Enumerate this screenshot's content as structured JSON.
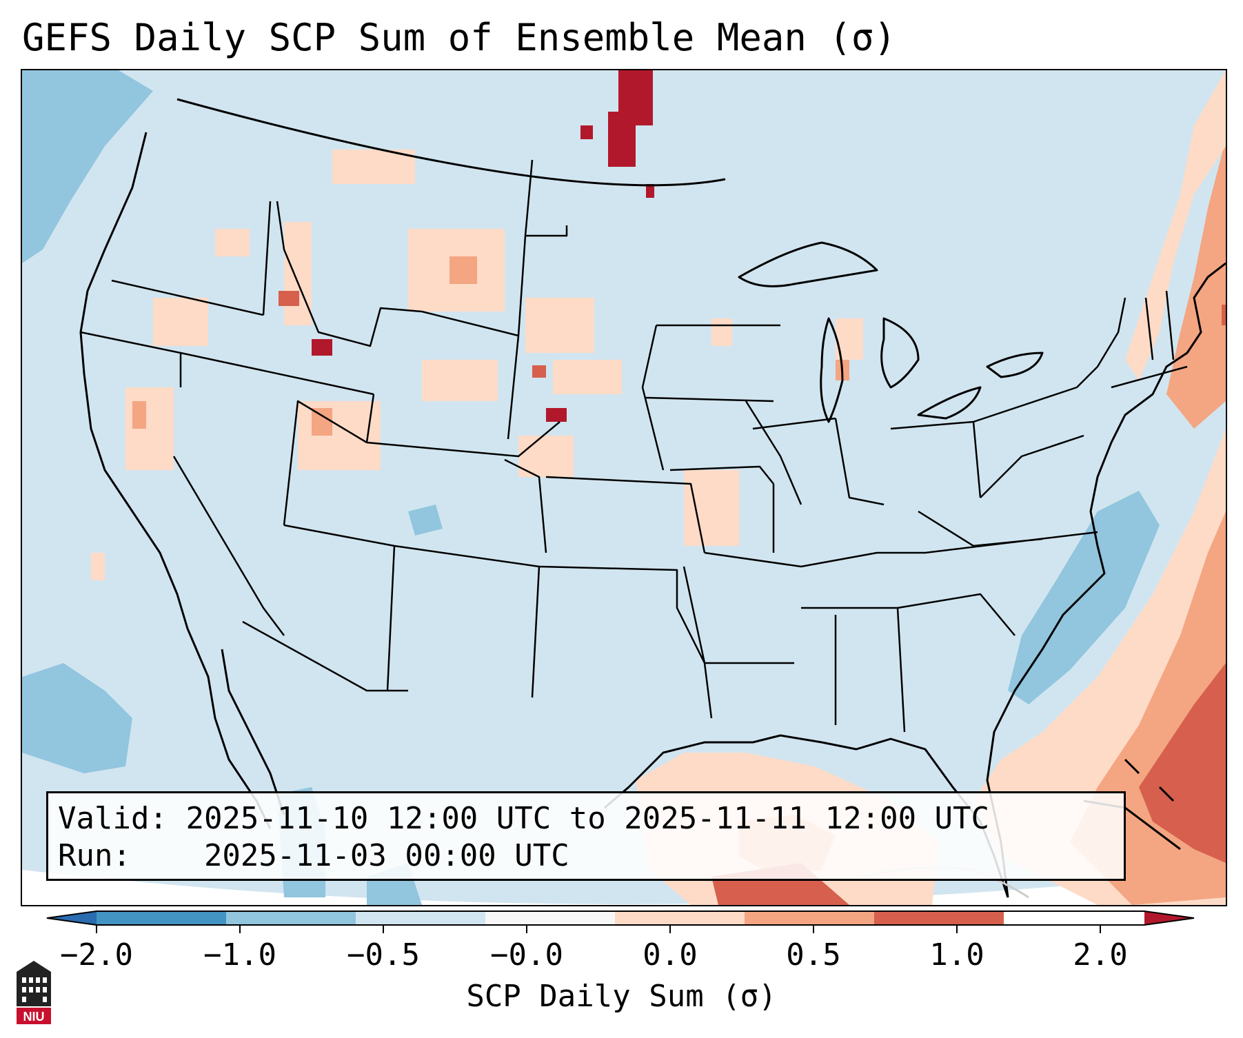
{
  "figure": {
    "title": "GEFS Daily SCP Sum of Ensemble Mean (σ)",
    "valid_label": "Valid:",
    "valid_text": "2025-11-10 12:00 UTC to 2025-11-11 12:00 UTC",
    "run_label": "Run:",
    "run_text": "2025-11-03 00:00 UTC"
  },
  "colorbar": {
    "label": "SCP Daily Sum (σ)",
    "ticks": [
      "−2.0",
      "−1.0",
      "−0.5",
      "−0.0",
      "0.0",
      "0.5",
      "1.0",
      "2.0"
    ],
    "bins": [
      {
        "from": "<-2.0",
        "color": "#2b6cb0"
      },
      {
        "from": "-2.0",
        "to": "-1.0",
        "color": "#4393c3"
      },
      {
        "from": "-1.0",
        "to": "-0.5",
        "color": "#92c5de"
      },
      {
        "from": "-0.5",
        "to": "-0.0",
        "color": "#d1e5f0"
      },
      {
        "from": "-0.0",
        "to": "0.0",
        "color": "#f7f7f7"
      },
      {
        "from": "0.0",
        "to": "0.5",
        "color": "#fddbc7"
      },
      {
        "from": "0.5",
        "to": "1.0",
        "color": "#f4a582"
      },
      {
        "from": "1.0",
        "to": "2.0",
        "color": "#d6604d"
      },
      {
        "from": ">2.0",
        "color": "#b2182b"
      }
    ]
  },
  "map_data": {
    "domain": "Contiguous United States",
    "field": "GEFS ensemble mean daily Supercell Composite Parameter sum, standardized anomaly",
    "dominant_value_category": "-0.5 to -0.0",
    "positive_regions": [
      {
        "name": "Western Atlantic east of Florida and the Carolinas",
        "category": "1.0 to 2.0"
      },
      {
        "name": "Gulf of Mexico",
        "category": "0.0 to 0.5"
      },
      {
        "name": "Northern Plains / Montana / Wyoming",
        "category": "0.0 to 0.5"
      },
      {
        "name": "North Dakota–Manitoba border",
        "category": ">2.0"
      },
      {
        "name": "New England coast",
        "category": "0.5 to 1.0"
      }
    ],
    "negative_regions": [
      {
        "name": "Eastern Pacific off Washington",
        "category": "-1.0 to -0.5"
      },
      {
        "name": "Atlantic off the Carolinas",
        "category": "-1.0 to -0.5"
      }
    ]
  },
  "logo": {
    "text": "NIU",
    "color": "#c8102e"
  },
  "colors": {
    "ocean_land_base": "#d1e5f0",
    "outline": "#000000"
  }
}
